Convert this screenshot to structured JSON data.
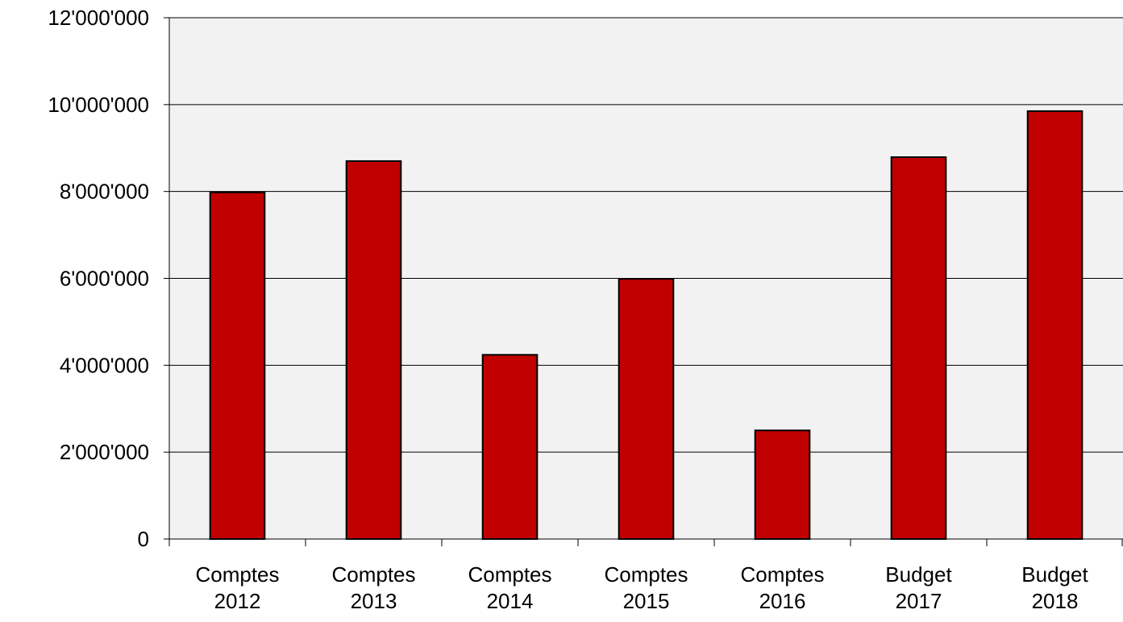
{
  "chart_data": {
    "type": "bar",
    "categories": [
      [
        "Comptes",
        "2012"
      ],
      [
        "Comptes",
        "2013"
      ],
      [
        "Comptes",
        "2014"
      ],
      [
        "Comptes",
        "2015"
      ],
      [
        "Comptes",
        "2016"
      ],
      [
        "Budget",
        "2017"
      ],
      [
        "Budget",
        "2018"
      ]
    ],
    "values": [
      7980000,
      8700000,
      4240000,
      5990000,
      2500000,
      8790000,
      9850000
    ],
    "ylim": [
      0,
      12000000
    ],
    "yticks": [
      0,
      2000000,
      4000000,
      6000000,
      8000000,
      10000000,
      12000000
    ],
    "ytick_labels": [
      "0",
      "2'000'000",
      "4'000'000",
      "6'000'000",
      "8'000'000",
      "10'000'000",
      "12'000'000"
    ],
    "title": "",
    "xlabel": "",
    "ylabel": "",
    "grid": true,
    "legend": "none",
    "colors": {
      "bar_fill": "#c00000",
      "bar_stroke": "#000000",
      "plot_background": "#f2f2f2",
      "gridline": "#000000"
    }
  }
}
